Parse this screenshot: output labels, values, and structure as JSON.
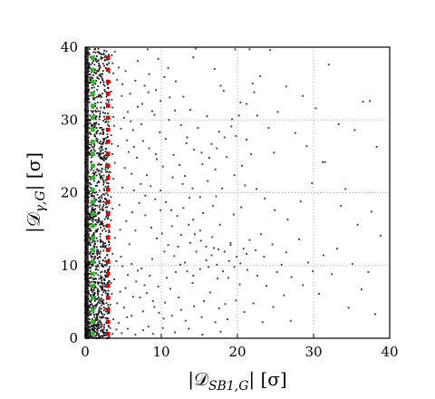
{
  "chart_data": {
    "type": "scatter",
    "xlabel": "|𝒟SB1,G| [σ]",
    "ylabel": "|𝒟γ,G| [σ]",
    "xlabel_parts": {
      "pre": "|𝒟",
      "sub": "SB1,G",
      "post": "| [σ]"
    },
    "ylabel_parts": {
      "pre": "|𝒟",
      "sub": "γ,G",
      "post": "| [σ]"
    },
    "xlim": [
      0,
      40
    ],
    "ylim": [
      0,
      40
    ],
    "xticks": [
      0,
      10,
      20,
      30,
      40
    ],
    "yticks": [
      0,
      10,
      20,
      30,
      40
    ],
    "tick_labels_x": [
      "0",
      "10",
      "20",
      "30",
      "40"
    ],
    "tick_labels_y": [
      "0",
      "10",
      "20",
      "30",
      "40"
    ],
    "grid": true,
    "colors": {
      "points": "#4d4d4d",
      "reference_1": "#2db52d",
      "reference_3": "#e00000",
      "grid": "#bfbfbf"
    },
    "series": [
      {
        "kind": "points",
        "points": [
          [
            32,
            37.6
          ],
          [
            36.5,
            32.5
          ],
          [
            37.4,
            32.6
          ],
          [
            31.5,
            24.2
          ],
          [
            31.2,
            24.2
          ],
          [
            34.2,
            20.5
          ],
          [
            27,
            2.4
          ],
          [
            21.6,
            39.7
          ],
          [
            24.3,
            39.6
          ],
          [
            19.7,
            39.7
          ],
          [
            14.5,
            39.8
          ],
          [
            23,
            36
          ],
          [
            18.2,
            34
          ],
          [
            22,
            35
          ],
          [
            17.8,
            34.7
          ],
          [
            14.2,
            38.6
          ],
          [
            17,
            37
          ],
          [
            21.2,
            27.3
          ],
          [
            24.8,
            25.5
          ],
          [
            19.8,
            27.8
          ],
          [
            16,
            30.5
          ],
          [
            11,
            30
          ],
          [
            15.3,
            25.5
          ],
          [
            13.3,
            26.8
          ],
          [
            22.5,
            20.5
          ],
          [
            21,
            21
          ],
          [
            20.5,
            18
          ],
          [
            19.5,
            17
          ],
          [
            18,
            20.6
          ],
          [
            17.2,
            19.5
          ],
          [
            16.8,
            18.2
          ],
          [
            15.5,
            17.2
          ],
          [
            14.2,
            16.3
          ],
          [
            13.7,
            19.3
          ],
          [
            12.8,
            21.2
          ],
          [
            11.5,
            22.1
          ],
          [
            10.2,
            23.6
          ],
          [
            9.4,
            24.6
          ],
          [
            8.4,
            26.1
          ],
          [
            7.6,
            27.1
          ],
          [
            6.3,
            28.6
          ],
          [
            5.6,
            31.1
          ],
          [
            4.8,
            33.3
          ],
          [
            4.2,
            35.5
          ],
          [
            5.3,
            36.7
          ],
          [
            6.9,
            38.1
          ],
          [
            8.2,
            39.7
          ],
          [
            9.3,
            25.3
          ],
          [
            8.1,
            22.4
          ],
          [
            6.4,
            20.3
          ],
          [
            9.9,
            17.6
          ],
          [
            11.4,
            15.4
          ],
          [
            12.6,
            14.2
          ],
          [
            15.1,
            14.8
          ],
          [
            17.7,
            15.6
          ],
          [
            19.1,
            13.1
          ],
          [
            21.2,
            11.6
          ],
          [
            23.1,
            14.3
          ],
          [
            20.3,
            7.4
          ],
          [
            18.4,
            4.7
          ],
          [
            17.1,
            2.2
          ],
          [
            15.6,
            5.1
          ],
          [
            14.1,
            7.6
          ],
          [
            12.6,
            3.9
          ],
          [
            11.2,
            6.8
          ],
          [
            10.3,
            2.7
          ],
          [
            9.1,
            4.3
          ],
          [
            8.3,
            1.6
          ],
          [
            7.2,
            5.6
          ],
          [
            6.1,
            3.1
          ],
          [
            5.3,
            6.9
          ],
          [
            4.4,
            2.1
          ],
          [
            3.8,
            8.1
          ],
          [
            4.7,
            11.2
          ],
          [
            5.8,
            12.9
          ],
          [
            6.6,
            14.8
          ],
          [
            7.4,
            9.6
          ],
          [
            8.8,
            10.9
          ],
          [
            10.4,
            11.9
          ],
          [
            11.9,
            9.1
          ],
          [
            13.1,
            10.4
          ],
          [
            14.6,
            11.9
          ],
          [
            16.2,
            9.8
          ],
          [
            17.4,
            8.2
          ],
          [
            18.9,
            10.6
          ],
          [
            16.9,
            12.4
          ],
          [
            13.8,
            13.1
          ],
          [
            12.2,
            12.6
          ],
          [
            10.7,
            8.3
          ],
          [
            9.6,
            7.1
          ],
          [
            8.5,
            8.6
          ],
          [
            7.8,
            7.3
          ],
          [
            6.9,
            9.3
          ],
          [
            6.1,
            10.2
          ],
          [
            5.6,
            8.7
          ],
          [
            4.9,
            9.9
          ],
          [
            4.1,
            10.6
          ],
          [
            3.6,
            11.6
          ],
          [
            3.9,
            13.8
          ],
          [
            4.6,
            14.9
          ],
          [
            5.4,
            16.1
          ],
          [
            6.2,
            17.3
          ],
          [
            7.1,
            18.6
          ],
          [
            7.9,
            16.9
          ],
          [
            8.7,
            15.2
          ],
          [
            9.4,
            13.7
          ],
          [
            10.1,
            14.4
          ],
          [
            10.9,
            12.8
          ],
          [
            11.7,
            11.3
          ],
          [
            12.5,
            10.1
          ],
          [
            13.4,
            9.2
          ],
          [
            14.2,
            8.6
          ],
          [
            15.1,
            9.5
          ],
          [
            15.9,
            10.7
          ],
          [
            16.6,
            11.4
          ],
          [
            17.3,
            10.1
          ],
          [
            18.1,
            9.2
          ],
          [
            18.8,
            8.3
          ],
          [
            19.6,
            9.8
          ],
          [
            20.4,
            10.3
          ],
          [
            21.3,
            9.4
          ],
          [
            22.6,
            8.6
          ],
          [
            23.8,
            7.2
          ],
          [
            25.2,
            9.1
          ],
          [
            26.4,
            11.8
          ],
          [
            28.1,
            13.6
          ],
          [
            29.3,
            10.4
          ],
          [
            30.7,
            6.1
          ],
          [
            32.4,
            8.8
          ],
          [
            34.6,
            4.2
          ],
          [
            36.3,
            6.7
          ],
          [
            38.1,
            3.3
          ],
          [
            3.4,
            19.4
          ],
          [
            3.7,
            21.9
          ],
          [
            3.9,
            24.1
          ],
          [
            3.5,
            26.7
          ],
          [
            3.8,
            29.2
          ],
          [
            3.6,
            31.7
          ],
          [
            3.4,
            33.9
          ],
          [
            3.7,
            36.4
          ],
          [
            3.5,
            38.9
          ],
          [
            4.5,
            18.3
          ],
          [
            4.9,
            20.7
          ],
          [
            5.2,
            23.4
          ],
          [
            5.7,
            25.6
          ],
          [
            6.1,
            22.6
          ],
          [
            6.8,
            24.8
          ],
          [
            7.3,
            21.2
          ],
          [
            7.9,
            19.6
          ],
          [
            8.6,
            20.9
          ],
          [
            9.2,
            19.1
          ],
          [
            9.9,
            20.3
          ],
          [
            10.6,
            18.7
          ],
          [
            11.3,
            17.6
          ],
          [
            12.1,
            16.8
          ],
          [
            12.9,
            17.9
          ],
          [
            13.6,
            15.6
          ],
          [
            14.4,
            14.3
          ],
          [
            15.2,
            13.4
          ],
          [
            15.9,
            12.6
          ],
          [
            16.7,
            13.9
          ],
          [
            17.5,
            12.2
          ],
          [
            18.3,
            11.9
          ],
          [
            19.1,
            12.8
          ],
          [
            19.9,
            11.2
          ],
          [
            20.8,
            12.3
          ],
          [
            21.6,
            13.5
          ],
          [
            22.4,
            12.1
          ],
          [
            23.5,
            11.2
          ],
          [
            24.6,
            12.9
          ],
          [
            25.8,
            10.1
          ],
          [
            27.1,
            8.4
          ],
          [
            28.6,
            7.3
          ],
          [
            29.9,
            9.2
          ],
          [
            31.3,
            11.4
          ],
          [
            33.1,
            12.3
          ],
          [
            35.1,
            10.2
          ],
          [
            37.2,
            9.1
          ],
          [
            3.3,
            4.6
          ],
          [
            3.5,
            6.1
          ],
          [
            3.7,
            2.6
          ],
          [
            4.2,
            4.8
          ],
          [
            4.6,
            6.4
          ],
          [
            5.1,
            4.2
          ],
          [
            5.5,
            2.9
          ],
          [
            6.3,
            5.7
          ],
          [
            6.7,
            7.8
          ],
          [
            7.6,
            3.7
          ],
          [
            8.1,
            6.2
          ],
          [
            8.9,
            5.1
          ],
          [
            9.7,
            3.5
          ],
          [
            10.5,
            4.9
          ],
          [
            11.4,
            3.1
          ],
          [
            12.3,
            5.6
          ],
          [
            13.2,
            2.4
          ],
          [
            14.3,
            4.4
          ],
          [
            15.3,
            2.9
          ],
          [
            16.4,
            6.3
          ],
          [
            17.6,
            4.1
          ],
          [
            18.7,
            2.6
          ],
          [
            19.8,
            5.2
          ],
          [
            20.9,
            3.6
          ],
          [
            22.1,
            4.8
          ],
          [
            23.3,
            2.2
          ],
          [
            24.7,
            4.3
          ],
          [
            26.1,
            5.9
          ],
          [
            3.2,
            14.6
          ],
          [
            3.4,
            16.2
          ],
          [
            3.6,
            17.8
          ],
          [
            3.3,
            12.4
          ],
          [
            3.2,
            9.8
          ],
          [
            3.4,
            7.6
          ],
          [
            3.3,
            1.4
          ],
          [
            3.6,
            0.6
          ],
          [
            4.1,
            1.2
          ],
          [
            4.8,
            0.7
          ],
          [
            5.6,
            1.3
          ],
          [
            6.6,
            0.5
          ],
          [
            7.6,
            1.1
          ],
          [
            8.9,
            0.6
          ],
          [
            10.2,
            1.4
          ],
          [
            11.8,
            0.8
          ],
          [
            13.6,
            1.3
          ],
          [
            15.4,
            0.5
          ],
          [
            17.8,
            0.9
          ],
          [
            3.9,
            39.4
          ],
          [
            4.4,
            37.2
          ],
          [
            4.9,
            34.9
          ],
          [
            5.9,
            33.6
          ],
          [
            6.6,
            35.4
          ],
          [
            7.5,
            32.2
          ],
          [
            8.3,
            33.8
          ],
          [
            9.1,
            30.7
          ],
          [
            9.8,
            28.3
          ],
          [
            10.6,
            27.4
          ],
          [
            11.6,
            25.2
          ],
          [
            12.4,
            23.8
          ],
          [
            13.1,
            22.3
          ],
          [
            14.1,
            20.6
          ],
          [
            15.1,
            19.4
          ],
          [
            16.1,
            21.6
          ],
          [
            17.1,
            23.2
          ],
          [
            18.6,
            24.9
          ],
          [
            19.6,
            22.4
          ],
          [
            20.6,
            23.7
          ],
          [
            21.8,
            25.3
          ],
          [
            23.6,
            19.2
          ],
          [
            24.9,
            17.6
          ],
          [
            26.6,
            16.3
          ],
          [
            28.3,
            18.8
          ],
          [
            29.8,
            21.3
          ],
          [
            33.6,
            18.2
          ],
          [
            35.8,
            15.6
          ],
          [
            37.6,
            17.4
          ],
          [
            38.8,
            14.1
          ],
          [
            38.3,
            26.3
          ],
          [
            35.4,
            28.6
          ],
          [
            33.3,
            29.4
          ],
          [
            30.3,
            31.6
          ],
          [
            28.6,
            33.3
          ],
          [
            26.4,
            34.6
          ],
          [
            25.3,
            31.1
          ],
          [
            27.6,
            28.2
          ],
          [
            29.1,
            26.4
          ],
          [
            24.1,
            28.9
          ],
          [
            22.6,
            30.6
          ],
          [
            20.4,
            32.4
          ],
          [
            19.3,
            30.1
          ],
          [
            17.6,
            28.4
          ],
          [
            16.6,
            26.7
          ],
          [
            14.8,
            28.9
          ],
          [
            13.8,
            31.4
          ],
          [
            12.9,
            33.2
          ],
          [
            11.9,
            35.3
          ],
          [
            10.9,
            37.1
          ],
          [
            9.6,
            38.4
          ],
          [
            3.3,
            22.8
          ],
          [
            3.6,
            25.3
          ],
          [
            3.4,
            27.9
          ],
          [
            3.7,
            30.4
          ],
          [
            3.5,
            32.8
          ],
          [
            3.3,
            35.2
          ],
          [
            3.6,
            37.8
          ],
          [
            4.3,
            26.4
          ],
          [
            4.7,
            28.8
          ],
          [
            5.1,
            30.3
          ],
          [
            5.5,
            27.2
          ],
          [
            6,
            29.8
          ],
          [
            6.4,
            26.3
          ],
          [
            6.9,
            31.8
          ],
          [
            7.4,
            29.4
          ],
          [
            7.8,
            34.7
          ],
          [
            8.4,
            36.3
          ],
          [
            8.8,
            31.2
          ],
          [
            9.3,
            34.1
          ],
          [
            9.9,
            32.6
          ],
          [
            10.4,
            35.9
          ],
          [
            11.1,
            33.1
          ],
          [
            11.8,
            31.3
          ],
          [
            12.6,
            29.3
          ],
          [
            13.4,
            27.6
          ],
          [
            14.3,
            25.9
          ],
          [
            15.4,
            23.9
          ],
          [
            16.3,
            24.8
          ],
          [
            17.3,
            26.1
          ],
          [
            18.3,
            27.6
          ],
          [
            19.2,
            29.1
          ],
          [
            20.2,
            30.6
          ],
          [
            21.2,
            32.2
          ],
          [
            22.2,
            33.8
          ]
        ]
      },
      {
        "kind": "reference",
        "x": 1,
        "color": "#2db52d"
      },
      {
        "kind": "reference",
        "x": 3,
        "color": "#e00000"
      }
    ]
  }
}
